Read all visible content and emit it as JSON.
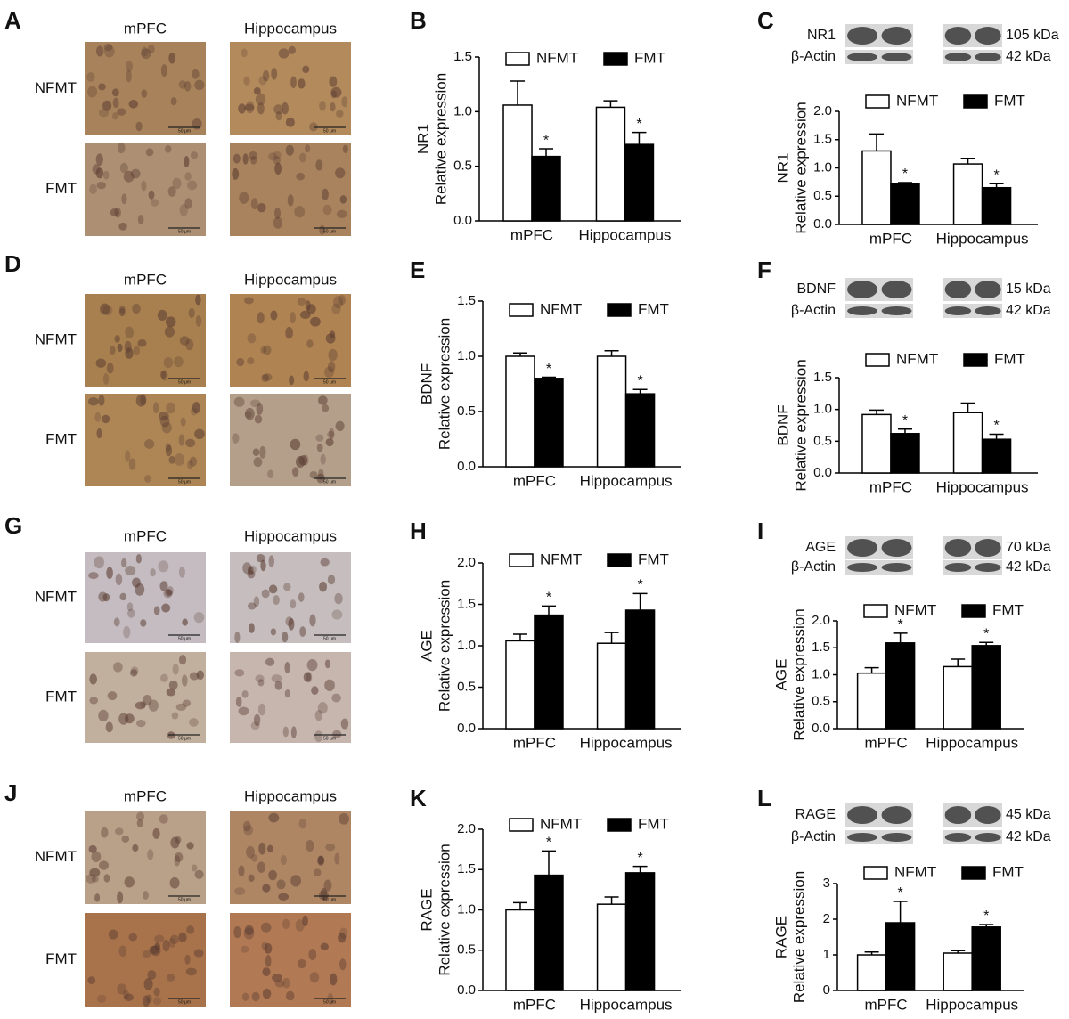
{
  "chart_data": [
    {
      "type": "bar",
      "panel": "B",
      "ylabel": [
        "NR1",
        "Relative expression"
      ],
      "categories": [
        "mPFC",
        "Hippocampus"
      ],
      "series": [
        {
          "name": "NFMT",
          "color": "#ffffff",
          "values": [
            1.06,
            1.04
          ],
          "errors": [
            0.22,
            0.06
          ]
        },
        {
          "name": "FMT",
          "color": "#000000",
          "values": [
            0.59,
            0.7
          ],
          "errors": [
            0.07,
            0.11
          ],
          "sig": [
            "*",
            "*"
          ]
        }
      ],
      "ylim": [
        0,
        1.5
      ],
      "yticks": [
        {
          "value": 0,
          "label": "0.0"
        },
        {
          "value": 0.5,
          "label": "0.5"
        },
        {
          "value": 1,
          "label": "1.0"
        },
        {
          "value": 1.5,
          "label": "1.5"
        }
      ]
    },
    {
      "type": "bar",
      "panel": "C",
      "ylabel": [
        "NR1",
        "Relative expression"
      ],
      "categories": [
        "mPFC",
        "Hippocampus"
      ],
      "series": [
        {
          "name": "NFMT",
          "color": "#ffffff",
          "values": [
            1.3,
            1.07
          ],
          "errors": [
            0.3,
            0.1
          ]
        },
        {
          "name": "FMT",
          "color": "#000000",
          "values": [
            0.72,
            0.65
          ],
          "errors": [
            0.02,
            0.07
          ],
          "sig": [
            "*",
            "*"
          ]
        }
      ],
      "ylim": [
        0,
        2
      ],
      "yticks": [
        {
          "value": 0,
          "label": "0.0"
        },
        {
          "value": 0.5,
          "label": "0.5"
        },
        {
          "value": 1,
          "label": "1.0"
        },
        {
          "value": 1.5,
          "label": "1.5"
        },
        {
          "value": 2,
          "label": "2.0"
        }
      ]
    },
    {
      "type": "bar",
      "panel": "E",
      "ylabel": [
        "BDNF",
        "Relative expression"
      ],
      "categories": [
        "mPFC",
        "Hippocampus"
      ],
      "series": [
        {
          "name": "NFMT",
          "color": "#ffffff",
          "values": [
            1.0,
            1.0
          ],
          "errors": [
            0.03,
            0.05
          ]
        },
        {
          "name": "FMT",
          "color": "#000000",
          "values": [
            0.8,
            0.66
          ],
          "errors": [
            0.01,
            0.04
          ],
          "sig": [
            "*",
            "*"
          ]
        }
      ],
      "ylim": [
        0,
        1.5
      ],
      "yticks": [
        {
          "value": 0,
          "label": "0.0"
        },
        {
          "value": 0.5,
          "label": "0.5"
        },
        {
          "value": 1,
          "label": "1.0"
        },
        {
          "value": 1.5,
          "label": "1.5"
        }
      ]
    },
    {
      "type": "bar",
      "panel": "F",
      "ylabel": [
        "BDNF",
        "Relative expression"
      ],
      "categories": [
        "mPFC",
        "Hippocampus"
      ],
      "series": [
        {
          "name": "NFMT",
          "color": "#ffffff",
          "values": [
            0.92,
            0.95
          ],
          "errors": [
            0.07,
            0.15
          ]
        },
        {
          "name": "FMT",
          "color": "#000000",
          "values": [
            0.62,
            0.53
          ],
          "errors": [
            0.07,
            0.08
          ],
          "sig": [
            "*",
            "*"
          ]
        }
      ],
      "ylim": [
        0,
        1.5
      ],
      "yticks": [
        {
          "value": 0,
          "label": "0.0"
        },
        {
          "value": 0.5,
          "label": "0.5"
        },
        {
          "value": 1,
          "label": "1.0"
        },
        {
          "value": 1.5,
          "label": "1.5"
        }
      ]
    },
    {
      "type": "bar",
      "panel": "H",
      "ylabel": [
        "AGE",
        "Relative expression"
      ],
      "categories": [
        "mPFC",
        "Hippocampus"
      ],
      "series": [
        {
          "name": "NFMT",
          "color": "#ffffff",
          "values": [
            1.06,
            1.03
          ],
          "errors": [
            0.08,
            0.13
          ]
        },
        {
          "name": "FMT",
          "color": "#000000",
          "values": [
            1.37,
            1.43
          ],
          "errors": [
            0.11,
            0.2
          ],
          "sig": [
            "*",
            "*"
          ]
        }
      ],
      "ylim": [
        0,
        2
      ],
      "yticks": [
        {
          "value": 0,
          "label": "0.0"
        },
        {
          "value": 0.5,
          "label": "0.5"
        },
        {
          "value": 1,
          "label": "1.0"
        },
        {
          "value": 1.5,
          "label": "1.5"
        },
        {
          "value": 2,
          "label": "2.0"
        }
      ]
    },
    {
      "type": "bar",
      "panel": "I",
      "ylabel": [
        "AGE",
        "Relative expression"
      ],
      "categories": [
        "mPFC",
        "Hippocampus"
      ],
      "series": [
        {
          "name": "NFMT",
          "color": "#ffffff",
          "values": [
            1.03,
            1.15
          ],
          "errors": [
            0.1,
            0.14
          ]
        },
        {
          "name": "FMT",
          "color": "#000000",
          "values": [
            1.59,
            1.54
          ],
          "errors": [
            0.18,
            0.06
          ],
          "sig": [
            "*",
            "*"
          ]
        }
      ],
      "ylim": [
        0,
        2
      ],
      "yticks": [
        {
          "value": 0,
          "label": "0.0"
        },
        {
          "value": 0.5,
          "label": "0.5"
        },
        {
          "value": 1,
          "label": "1.0"
        },
        {
          "value": 1.5,
          "label": "1.5"
        },
        {
          "value": 2,
          "label": "2.0"
        }
      ]
    },
    {
      "type": "bar",
      "panel": "K",
      "ylabel": [
        "RAGE",
        "Relative expression"
      ],
      "categories": [
        "mPFC",
        "Hippocampus"
      ],
      "series": [
        {
          "name": "NFMT",
          "color": "#ffffff",
          "values": [
            1.0,
            1.07
          ],
          "errors": [
            0.09,
            0.09
          ]
        },
        {
          "name": "FMT",
          "color": "#000000",
          "values": [
            1.43,
            1.46
          ],
          "errors": [
            0.3,
            0.08
          ],
          "sig": [
            "*",
            "*"
          ]
        }
      ],
      "ylim": [
        0,
        2
      ],
      "yticks": [
        {
          "value": 0,
          "label": "0.0"
        },
        {
          "value": 0.5,
          "label": "0.5"
        },
        {
          "value": 1,
          "label": "1.0"
        },
        {
          "value": 1.5,
          "label": "1.5"
        },
        {
          "value": 2,
          "label": "2.0"
        }
      ]
    },
    {
      "type": "bar",
      "panel": "L",
      "ylabel": [
        "RAGE",
        "Relative expression"
      ],
      "categories": [
        "mPFC",
        "Hippocampus"
      ],
      "series": [
        {
          "name": "NFMT",
          "color": "#ffffff",
          "values": [
            1.0,
            1.05
          ],
          "errors": [
            0.08,
            0.07
          ]
        },
        {
          "name": "FMT",
          "color": "#000000",
          "values": [
            1.9,
            1.78
          ],
          "errors": [
            0.6,
            0.07
          ],
          "sig": [
            "*",
            "*"
          ]
        }
      ],
      "ylim": [
        0,
        3
      ],
      "yticks": [
        0,
        1,
        2,
        3
      ]
    }
  ],
  "histology": [
    {
      "panel": "A",
      "columns": [
        "mPFC",
        "Hippocampus"
      ],
      "rows": [
        "NFMT",
        "FMT"
      ],
      "scale_bar": "50 μm"
    },
    {
      "panel": "D",
      "columns": [
        "mPFC",
        "Hippocampus"
      ],
      "rows": [
        "NFMT",
        "FMT"
      ],
      "scale_bar": "50 μm"
    },
    {
      "panel": "G",
      "columns": [
        "mPFC",
        "Hippocampus"
      ],
      "rows": [
        "NFMT",
        "FMT"
      ],
      "scale_bar": "50 μm"
    },
    {
      "panel": "J",
      "columns": [
        "mPFC",
        "Hippocampus"
      ],
      "rows": [
        "NFMT",
        "FMT"
      ],
      "scale_bar": "50 μm"
    }
  ],
  "blots": [
    {
      "rows": [
        {
          "protein": "NR1",
          "size": "105 kDa"
        },
        {
          "protein": "β-Actin",
          "size": "42 kDa"
        }
      ]
    },
    {
      "rows": [
        {
          "protein": "BDNF",
          "size": "15 kDa"
        },
        {
          "protein": "β-Actin",
          "size": "42 kDa"
        }
      ]
    },
    {
      "rows": [
        {
          "protein": "AGE",
          "size": "70 kDa"
        },
        {
          "protein": "β-Actin",
          "size": "42 kDa"
        }
      ]
    },
    {
      "rows": [
        {
          "protein": "RAGE",
          "size": "45 kDa"
        },
        {
          "protein": "β-Actin",
          "size": "42 kDa"
        }
      ]
    }
  ]
}
